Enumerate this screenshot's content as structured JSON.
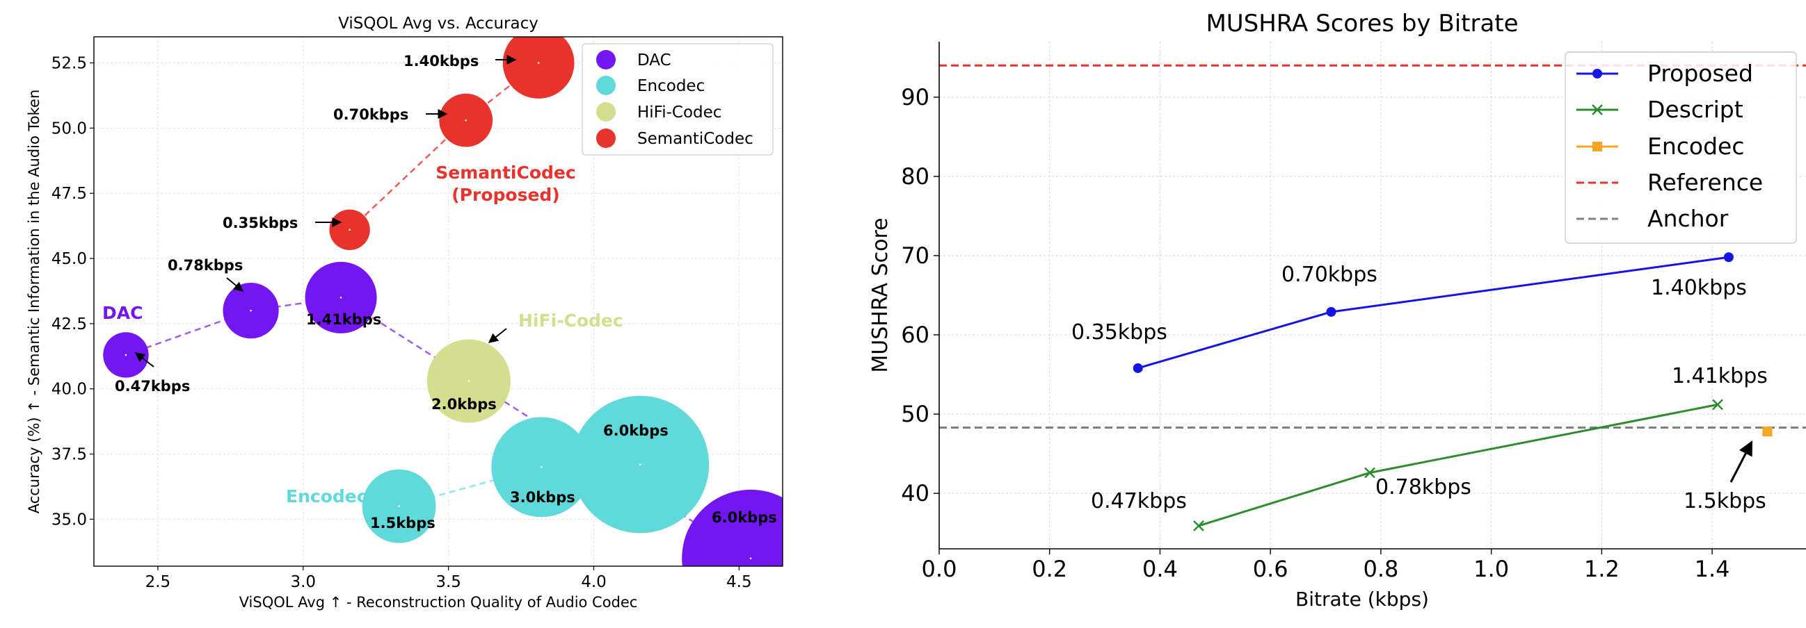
{
  "chart_data": [
    {
      "type": "scatter",
      "title": "ViSQOL Avg vs. Accuracy",
      "xlabel": "ViSQOL Avg ↑ - Reconstruction Quality of Audio Codec",
      "ylabel": "Accuracy (%) ↑ - Semantic Information in the Audio Token",
      "xlim": [
        2.28,
        4.65
      ],
      "ylim": [
        33.2,
        53.5
      ],
      "xticks": [
        2.5,
        3.0,
        3.5,
        4.0,
        4.5
      ],
      "yticks": [
        35.0,
        37.5,
        40.0,
        42.5,
        45.0,
        47.5,
        50.0,
        52.5
      ],
      "xtick_labels": [
        "2.5",
        "3.0",
        "3.5",
        "4.0",
        "4.5"
      ],
      "ytick_labels": [
        "35.0",
        "37.5",
        "40.0",
        "42.5",
        "45.0",
        "47.5",
        "50.0",
        "52.5"
      ],
      "grid": true,
      "legend": "top-right",
      "series": [
        {
          "name": "DAC",
          "color": "#7316f2",
          "points": [
            {
              "x": 2.39,
              "y": 41.3,
              "bitrate": 0.47,
              "label": "0.47kbps"
            },
            {
              "x": 2.82,
              "y": 43.0,
              "bitrate": 0.78,
              "label": "0.78kbps"
            },
            {
              "x": 3.13,
              "y": 43.5,
              "bitrate": 1.41,
              "label": "1.41kbps"
            },
            {
              "x": 4.54,
              "y": 33.5,
              "bitrate": 6.0,
              "label": "6.0kbps"
            }
          ]
        },
        {
          "name": "Encodec",
          "color": "#5fd9d9",
          "points": [
            {
              "x": 3.33,
              "y": 35.5,
              "bitrate": 1.5,
              "label": "1.5kbps"
            },
            {
              "x": 3.82,
              "y": 37.0,
              "bitrate": 3.0,
              "label": "3.0kbps"
            },
            {
              "x": 4.16,
              "y": 37.1,
              "bitrate": 6.0,
              "label": "6.0kbps"
            }
          ]
        },
        {
          "name": "HiFi-Codec",
          "color": "#d4de8e",
          "points": [
            {
              "x": 3.57,
              "y": 40.3,
              "bitrate": 2.0,
              "label": "2.0kbps"
            }
          ]
        },
        {
          "name": "SemantiCodec",
          "color": "#e8332c",
          "points": [
            {
              "x": 3.16,
              "y": 46.1,
              "bitrate": 0.35,
              "label": "0.35kbps"
            },
            {
              "x": 3.56,
              "y": 50.3,
              "bitrate": 0.7,
              "label": "0.70kbps"
            },
            {
              "x": 3.81,
              "y": 52.5,
              "bitrate": 1.4,
              "label": "1.40kbps"
            }
          ]
        }
      ],
      "annotations": {
        "dac": "DAC",
        "encodec": "Encodec",
        "hifi": "HiFi-Codec",
        "semanticodec_1": "SemantiCodec",
        "semanticodec_2": "(Proposed)"
      }
    },
    {
      "type": "line",
      "title": "MUSHRA Scores by Bitrate",
      "xlabel": "Bitrate (kbps)",
      "ylabel": "MUSHRA Score",
      "xlim": [
        0.0,
        1.57
      ],
      "ylim": [
        33,
        97
      ],
      "xticks": [
        0.0,
        0.2,
        0.4,
        0.6,
        0.8,
        1.0,
        1.2,
        1.4
      ],
      "yticks": [
        40,
        50,
        60,
        70,
        80,
        90
      ],
      "xtick_labels": [
        "0.0",
        "0.2",
        "0.4",
        "0.6",
        "0.8",
        "1.0",
        "1.2",
        "1.4"
      ],
      "ytick_labels": [
        "40",
        "50",
        "60",
        "70",
        "80",
        "90"
      ],
      "grid": true,
      "legend": "top-right",
      "series": [
        {
          "name": "Proposed",
          "color": "#1414e6",
          "marker": "o",
          "x": [
            0.36,
            0.71,
            1.43
          ],
          "y": [
            55.8,
            62.9,
            69.8
          ]
        },
        {
          "name": "Descript",
          "color": "#2e8b2e",
          "marker": "x",
          "x": [
            0.47,
            0.78,
            1.41
          ],
          "y": [
            35.9,
            42.6,
            51.2
          ]
        },
        {
          "name": "Encodec",
          "color": "#f5a623",
          "marker": "s",
          "x": [
            1.5
          ],
          "y": [
            47.8
          ]
        }
      ],
      "hlines": [
        {
          "name": "Reference",
          "y": 94.0,
          "color": "#e8332c"
        },
        {
          "name": "Anchor",
          "y": 48.3,
          "color": "#7f7f7f"
        }
      ],
      "point_labels": [
        "0.35kbps",
        "0.70kbps",
        "1.40kbps",
        "1.41kbps",
        "0.47kbps",
        "0.78kbps",
        "1.5kbps"
      ]
    }
  ]
}
